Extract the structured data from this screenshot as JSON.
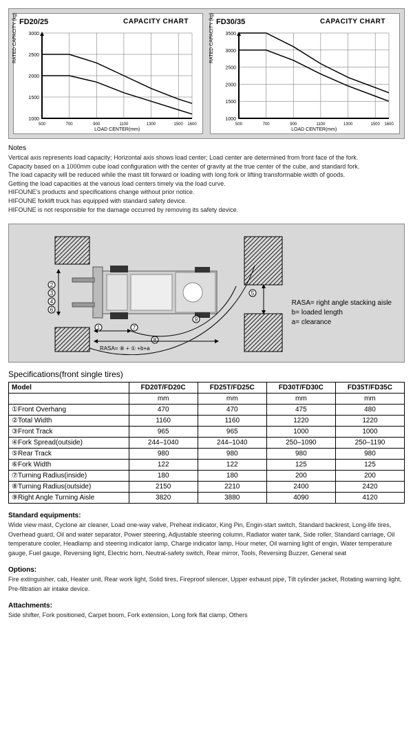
{
  "charts": [
    {
      "model": "FD20/25",
      "title": "CAPACITY CHART",
      "y_label": "RATED CAPACITY (kg)",
      "x_label": "LOAD CENTER(mm)",
      "x_ticks": [
        500,
        700,
        900,
        1100,
        1300,
        1500,
        1600
      ],
      "y_ticks": [
        1000,
        1500,
        2000,
        2500,
        3000
      ],
      "xlim": [
        500,
        1600
      ],
      "ylim": [
        1000,
        3000
      ],
      "grid_color": "#666",
      "bg": "#ffffff",
      "series": [
        {
          "name": "upper",
          "points": [
            [
              500,
              2500
            ],
            [
              700,
              2500
            ],
            [
              900,
              2300
            ],
            [
              1100,
              2000
            ],
            [
              1300,
              1700
            ],
            [
              1500,
              1450
            ],
            [
              1600,
              1350
            ]
          ],
          "color": "#000",
          "width": 1.5
        },
        {
          "name": "lower",
          "points": [
            [
              500,
              2000
            ],
            [
              700,
              2000
            ],
            [
              900,
              1850
            ],
            [
              1100,
              1600
            ],
            [
              1300,
              1400
            ],
            [
              1500,
              1200
            ],
            [
              1600,
              1100
            ]
          ],
          "color": "#000",
          "width": 1.5
        }
      ]
    },
    {
      "model": "FD30/35",
      "title": "CAPACITY CHART",
      "y_label": "RATED CAPACITY (kg)",
      "x_label": "LOAD CENTER(mm)",
      "x_ticks": [
        500,
        700,
        900,
        1100,
        1300,
        1500,
        1600
      ],
      "y_ticks": [
        1000,
        1500,
        2000,
        2500,
        3000,
        3500
      ],
      "xlim": [
        500,
        1600
      ],
      "ylim": [
        1000,
        3500
      ],
      "grid_color": "#666",
      "bg": "#ffffff",
      "series": [
        {
          "name": "upper",
          "points": [
            [
              500,
              3500
            ],
            [
              700,
              3500
            ],
            [
              900,
              3100
            ],
            [
              1100,
              2600
            ],
            [
              1300,
              2200
            ],
            [
              1500,
              1900
            ],
            [
              1600,
              1750
            ]
          ],
          "color": "#000",
          "width": 1.5
        },
        {
          "name": "lower",
          "points": [
            [
              500,
              3000
            ],
            [
              700,
              3000
            ],
            [
              900,
              2700
            ],
            [
              1100,
              2300
            ],
            [
              1300,
              1950
            ],
            [
              1500,
              1650
            ],
            [
              1600,
              1500
            ]
          ],
          "color": "#000",
          "width": 1.5
        }
      ]
    }
  ],
  "notes": {
    "header": "Notes",
    "lines": [
      "Vertical axis represents load capacity; Horizontal axis shows load center; Load center are determined from front face of the fork.",
      "Capacity based on a 1000mm cube load configuration with the center of gravity at the true center of the cube, and standard fork.",
      "The load capacity will be reduced while the mast tilt forward or loading with long fork or lifting transformable width of goods.",
      "Getting the load capacities at the various load centers timely via the load curve.",
      "HIFOUNE's products and specifications change without prior notice.",
      "HIFOUNE forklift truck has equipped with standard safety device.",
      "HIFOUNE is not responsible for the damage occurred by removing its safety device."
    ]
  },
  "diagram": {
    "labels": {
      "rasa": "RASA= right angle stacking aisle",
      "b": "b= loaded length",
      "a": "a= clearance"
    },
    "footnote": "RASA= ⑧ + ① +b+a",
    "marker_count": 9
  },
  "spec_title": "Specifications(front single tires)",
  "spec_table": {
    "header": [
      "Model",
      "FD20T/FD20C",
      "FD25T/FD25C",
      "FD30T/FD30C",
      "FD35T/FD35C"
    ],
    "unit_row": [
      "",
      "mm",
      "mm",
      "mm",
      "mm"
    ],
    "rows": [
      {
        "no": "①",
        "label": "Front Overhang",
        "v": [
          "470",
          "470",
          "475",
          "480"
        ]
      },
      {
        "no": "②",
        "label": "Total Width",
        "v": [
          "1160",
          "1160",
          "1220",
          "1220"
        ]
      },
      {
        "no": "③",
        "label": "Front Track",
        "v": [
          "965",
          "965",
          "1000",
          "1000"
        ]
      },
      {
        "no": "④",
        "label": "Fork Spread(outside)",
        "v": [
          "244–1040",
          "244–1040",
          "250–1090",
          "250–1190"
        ]
      },
      {
        "no": "⑤",
        "label": "Rear Track",
        "v": [
          "980",
          "980",
          "980",
          "980"
        ]
      },
      {
        "no": "⑥",
        "label": "Fork Width",
        "v": [
          "122",
          "122",
          "125",
          "125"
        ]
      },
      {
        "no": "⑦",
        "label": "Turning Radius(inside)",
        "v": [
          "180",
          "180",
          "200",
          "200"
        ]
      },
      {
        "no": "⑧",
        "label": "Turning Radius(outside)",
        "v": [
          "2150",
          "2210",
          "2400",
          "2420"
        ]
      },
      {
        "no": "⑨",
        "label": "Right Angle Turning Aisle",
        "v": [
          "3820",
          "3880",
          "4090",
          "4120"
        ]
      }
    ]
  },
  "equip": {
    "title": "Standard equipments:",
    "text": "Wide view mast, Cyclone air cleaner, Load one-way valve, Preheat indicator, King Pin, Engin-start switch, Standard backrest, Long-life tires, Overhead guard, Oil and water separator, Power steering, Adjustable steering column, Radiator water tank, Side roller, Standard carriage, Oil temperature cooler, Headlamp and steering indicator lamp, Charge indicator lamp, Hour meter, Oil warning light of engin, Water temperature gauge, Fuel gauge, Reversing light, Electric horn, Neutral-safety switch, Rear mirror, Tools, Reversing Buzzer, General seat"
  },
  "options": {
    "title": "Options:",
    "text": "Fire extinguisher, cab, Heater unit, Rear work light, Solid tires, Fireproof silencer, Upper exhaust pipe, Tilt cylinder jacket, Rotating warning light, Pre-filtration air intake device."
  },
  "attachments": {
    "title": "Attachments:",
    "text": "Side shifter, Fork positioned, Carpet boom, Fork extension, Long fork flat clamp, Others"
  }
}
